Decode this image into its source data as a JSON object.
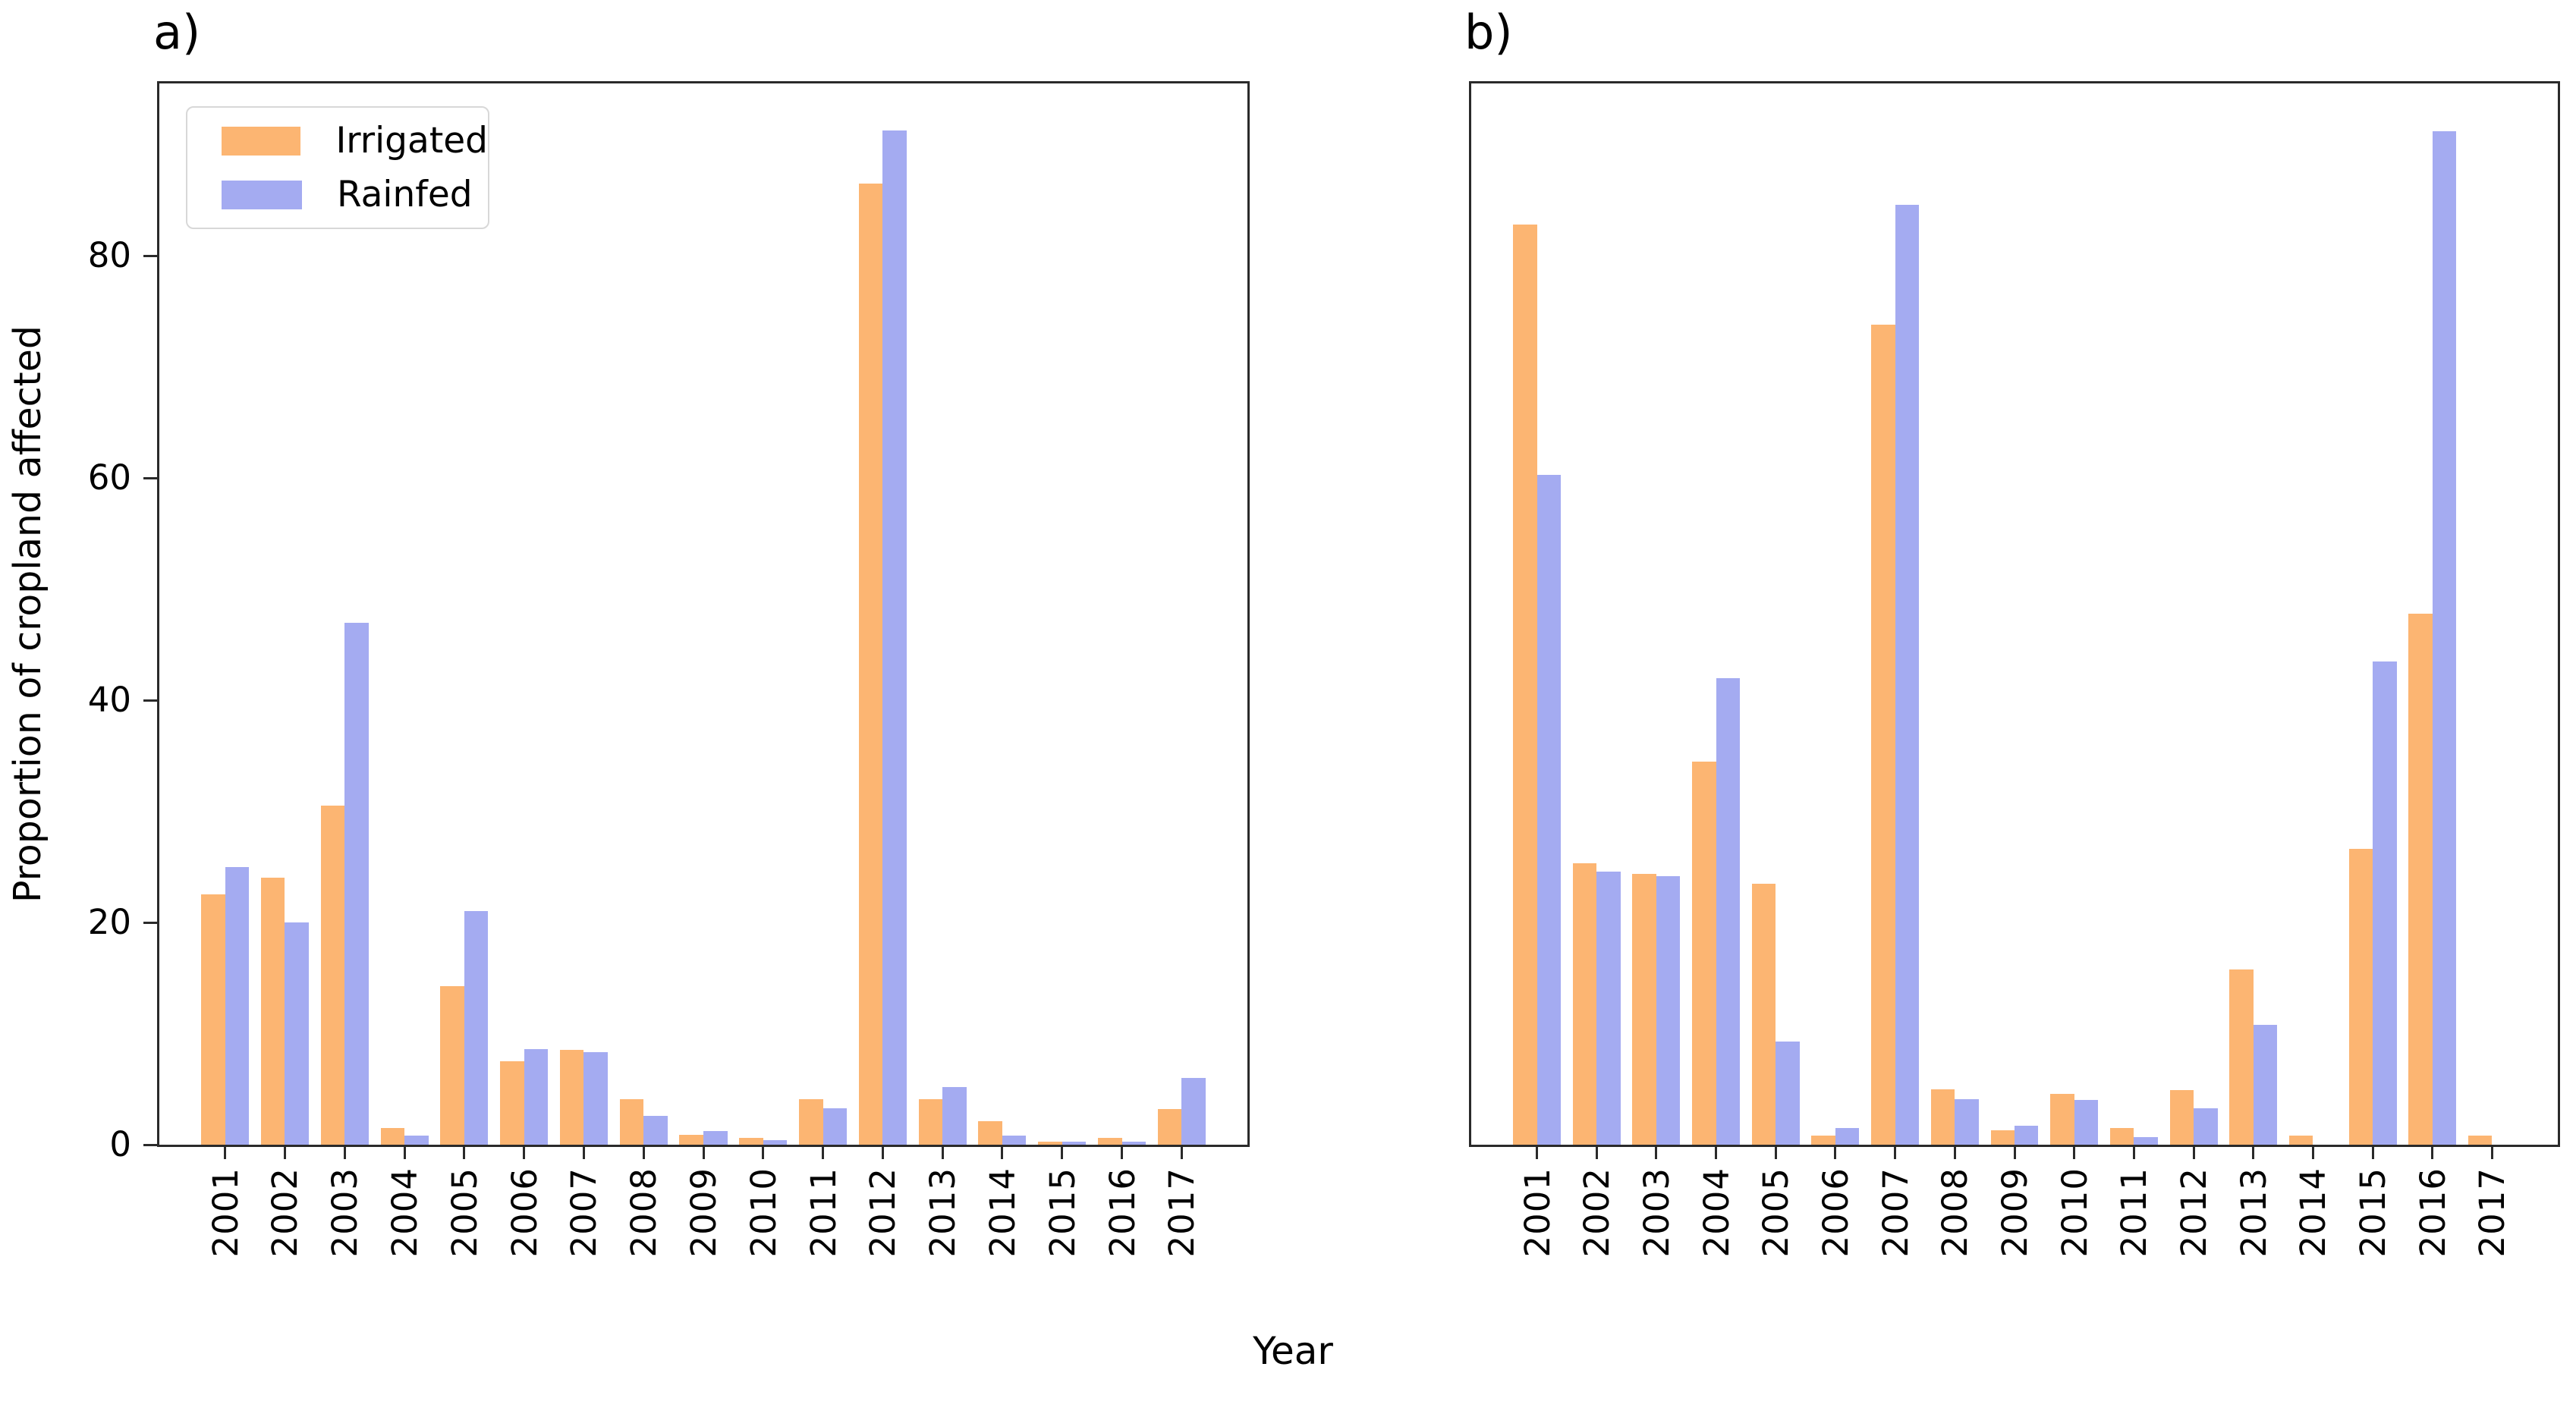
{
  "figure": {
    "panel_a_label": "a)",
    "panel_b_label": "b)",
    "ylabel": "Proportion of cropland affected",
    "xlabel": "Year",
    "colors": {
      "irrigated": "#fcb572",
      "rainfed": "#a4abf1",
      "spine": "#2a2a2a",
      "legend_border": "#d8d8d8"
    }
  },
  "chart_data": [
    {
      "type": "bar",
      "panel": "a",
      "title": "a)",
      "xlabel": "Year",
      "ylabel": "Proportion of cropland affected",
      "ylim": [
        0,
        95.5
      ],
      "yticks": [
        0,
        20,
        40,
        60,
        80
      ],
      "grid": false,
      "legend_position": "upper left",
      "show_ytick_labels": true,
      "categories": [
        "2001",
        "2002",
        "2003",
        "2004",
        "2005",
        "2006",
        "2007",
        "2008",
        "2009",
        "2010",
        "2011",
        "2012",
        "2013",
        "2014",
        "2015",
        "2016",
        "2017"
      ],
      "series": [
        {
          "name": "Irrigated",
          "values": [
            22.5,
            24.0,
            30.5,
            1.5,
            14.3,
            7.5,
            8.5,
            4.1,
            0.9,
            0.6,
            4.1,
            86.5,
            4.1,
            2.1,
            0.3,
            0.6,
            3.2
          ]
        },
        {
          "name": "Rainfed",
          "values": [
            25.0,
            20.0,
            47.0,
            0.8,
            21.0,
            8.6,
            8.3,
            2.6,
            1.2,
            0.4,
            3.3,
            91.3,
            5.2,
            0.8,
            0.3,
            0.3,
            6.0
          ]
        }
      ]
    },
    {
      "type": "bar",
      "panel": "b",
      "title": "b)",
      "xlabel": "Year",
      "ylabel": "",
      "ylim": [
        0,
        95.5
      ],
      "yticks": [
        0,
        20,
        40,
        60,
        80
      ],
      "grid": false,
      "legend_position": "none",
      "show_ytick_labels": false,
      "categories": [
        "2001",
        "2002",
        "2003",
        "2004",
        "2005",
        "2006",
        "2007",
        "2008",
        "2009",
        "2010",
        "2011",
        "2012",
        "2013",
        "2014",
        "2015",
        "2016",
        "2017"
      ],
      "series": [
        {
          "name": "Irrigated",
          "values": [
            82.8,
            25.3,
            24.4,
            34.5,
            23.5,
            0.8,
            73.8,
            5.0,
            1.3,
            4.6,
            1.5,
            4.9,
            15.8,
            0.8,
            26.6,
            47.8,
            0.8
          ]
        },
        {
          "name": "Rainfed",
          "values": [
            60.3,
            24.6,
            24.2,
            42.0,
            9.3,
            1.5,
            84.6,
            4.1,
            1.7,
            4.0,
            0.7,
            3.3,
            10.8,
            0.0,
            43.5,
            91.2,
            0.0
          ]
        }
      ]
    }
  ]
}
